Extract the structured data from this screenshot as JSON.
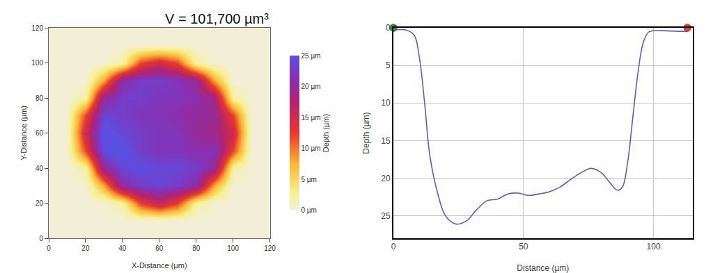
{
  "chart_data": [
    {
      "type": "heatmap",
      "annotation": "V = 101,700 µm³",
      "xlabel": "X-Distance (µm)",
      "ylabel": "Y-Distance (µm)",
      "zlabel": "Depth (µm)",
      "x": [
        0,
        10,
        20,
        30,
        40,
        50,
        60,
        70,
        80,
        90,
        100,
        110,
        120
      ],
      "y": [
        0,
        10,
        20,
        30,
        40,
        50,
        60,
        70,
        80,
        90,
        100,
        110,
        120
      ],
      "z": [
        [
          0,
          0,
          0,
          0,
          0,
          0,
          0,
          0,
          0,
          0,
          0,
          0,
          0
        ],
        [
          0,
          0,
          0,
          0,
          0,
          0,
          0,
          0,
          0,
          0,
          0,
          0,
          0
        ],
        [
          0,
          0,
          0,
          0,
          2,
          12,
          16,
          12,
          2,
          0,
          0,
          0,
          0
        ],
        [
          0,
          0,
          0,
          8,
          21,
          23,
          24,
          23,
          21,
          8,
          0,
          0,
          0
        ],
        [
          0,
          0,
          2,
          20,
          24,
          25,
          24,
          24,
          23,
          20,
          2,
          0,
          0
        ],
        [
          0,
          0,
          12,
          25,
          26,
          23,
          22,
          22,
          21,
          22,
          12,
          0,
          0
        ],
        [
          0,
          0,
          15,
          26,
          24,
          23,
          22,
          22,
          20,
          19,
          15,
          0,
          0
        ],
        [
          0,
          0,
          12,
          24,
          23,
          22,
          22,
          21,
          20,
          20,
          12,
          0,
          0
        ],
        [
          0,
          0,
          2,
          20,
          23,
          23,
          22,
          22,
          21,
          19,
          2,
          0,
          0
        ],
        [
          0,
          0,
          0,
          8,
          21,
          23,
          23,
          22,
          20,
          8,
          0,
          0,
          0
        ],
        [
          0,
          0,
          0,
          0,
          2,
          12,
          15,
          12,
          2,
          0,
          0,
          0,
          0
        ],
        [
          0,
          0,
          0,
          0,
          0,
          0,
          0,
          0,
          0,
          0,
          0,
          0,
          0
        ],
        [
          0,
          0,
          0,
          0,
          0,
          0,
          0,
          0,
          0,
          0,
          0,
          0,
          0
        ]
      ],
      "xlim": [
        0,
        120
      ],
      "ylim": [
        0,
        120
      ],
      "xticks": [
        0,
        20,
        40,
        60,
        80,
        100,
        120
      ],
      "yticks": [
        0,
        20,
        40,
        60,
        80,
        100,
        120
      ],
      "colorbar_range": [
        0,
        25
      ],
      "colorbar_ticks": [
        {
          "value": 0,
          "label": "0 µm"
        },
        {
          "value": 5,
          "label": "5 µm"
        },
        {
          "value": 10,
          "label": "10 µm"
        },
        {
          "value": 15,
          "label": "15 µm"
        },
        {
          "value": 20,
          "label": "20 µm"
        },
        {
          "value": 25,
          "label": "25 µm"
        }
      ]
    },
    {
      "type": "line",
      "xlabel": "Distance (µm)",
      "ylabel": "Depth (µm)",
      "x": [
        0,
        5,
        8,
        10,
        12,
        14,
        17,
        20,
        24,
        28,
        32,
        36,
        40,
        44,
        48,
        52,
        56,
        60,
        64,
        68,
        72,
        76,
        80,
        83,
        86,
        88,
        90,
        92,
        94,
        96,
        98,
        100,
        105,
        113
      ],
      "series": [
        {
          "type": "line",
          "color": "#5a5ad8",
          "values": [
            0.3,
            0.3,
            1,
            4,
            10,
            17,
            22,
            25,
            26.1,
            25.7,
            24.2,
            23,
            22.8,
            22.1,
            22,
            22.3,
            22.1,
            21.8,
            21.2,
            20.2,
            19.3,
            18.7,
            19.3,
            20.5,
            21.6,
            21.2,
            18,
            12,
            6,
            2,
            0.6,
            0.4,
            0.4,
            0.5
          ]
        },
        {
          "type": "scatter",
          "marker": "circle",
          "colors": [
            "#2e8b3e",
            "#e53935"
          ],
          "x": [
            0,
            113
          ],
          "values": [
            0,
            0
          ]
        }
      ],
      "xlim": [
        0,
        115
      ],
      "ylim": [
        0,
        28
      ],
      "xticks": [
        0,
        50,
        100
      ],
      "yticks": [
        0,
        5,
        10,
        15,
        20,
        25
      ],
      "grid": true
    }
  ]
}
